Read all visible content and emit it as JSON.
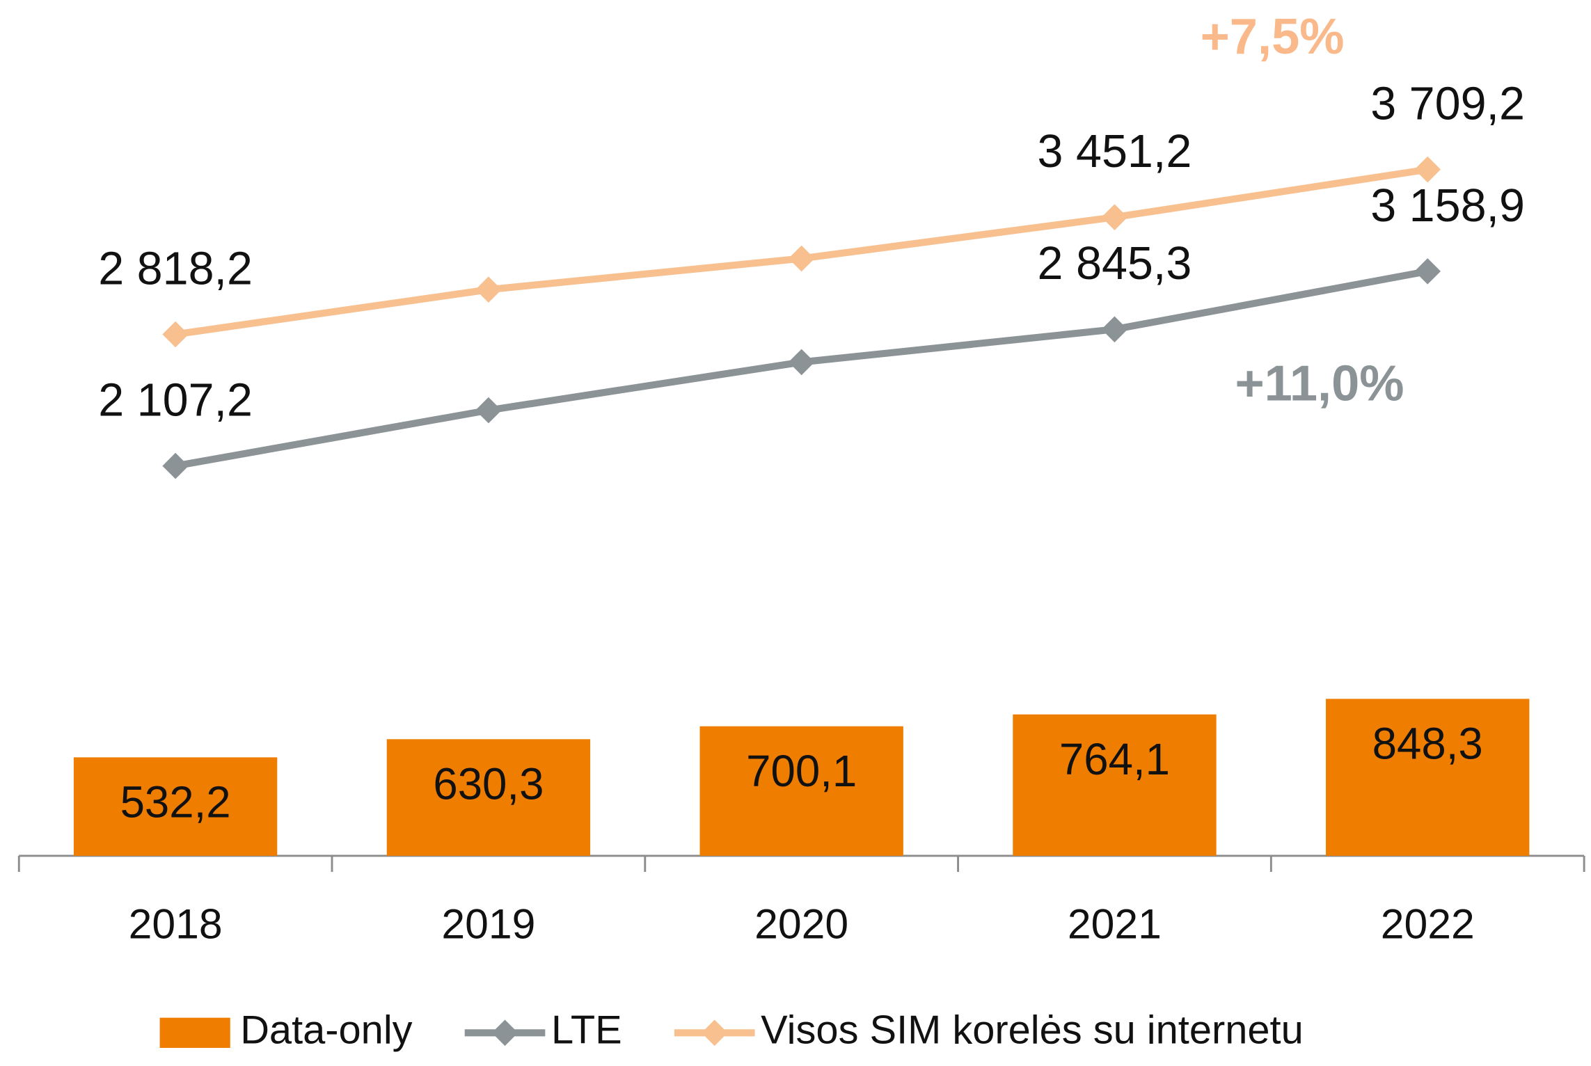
{
  "chart_data": {
    "type": "combo",
    "categories": [
      "2018",
      "2019",
      "2020",
      "2021",
      "2022"
    ],
    "ylim": [
      0,
      4500
    ],
    "series": [
      {
        "name": "Data-only",
        "type": "bar",
        "color": "#ef7d00",
        "values": [
          532.2,
          630.3,
          700.1,
          764.1,
          848.3
        ],
        "value_labels": [
          "532,2",
          "630,3",
          "700,1",
          "764,1",
          "848,3"
        ]
      },
      {
        "name": "LTE",
        "type": "line",
        "color": "#8c9396",
        "values": [
          2107.2,
          2408,
          2668,
          2845.3,
          3158.9
        ],
        "value_labels": [
          "2 107,2",
          null,
          null,
          "2 845,3",
          "3 158,9"
        ]
      },
      {
        "name": "Visos SIM korelės su internetu",
        "type": "line",
        "color": "#f9c08f",
        "values": [
          2818.2,
          3060,
          3228,
          3451.2,
          3709.2
        ],
        "value_labels": [
          "2 818,2",
          null,
          null,
          "3 451,2",
          "3 709,2"
        ]
      }
    ],
    "annotations": [
      {
        "text": "+7,5%",
        "color": "#f9b98a"
      },
      {
        "text": "+11,0%",
        "color": "#8c9396"
      }
    ]
  }
}
